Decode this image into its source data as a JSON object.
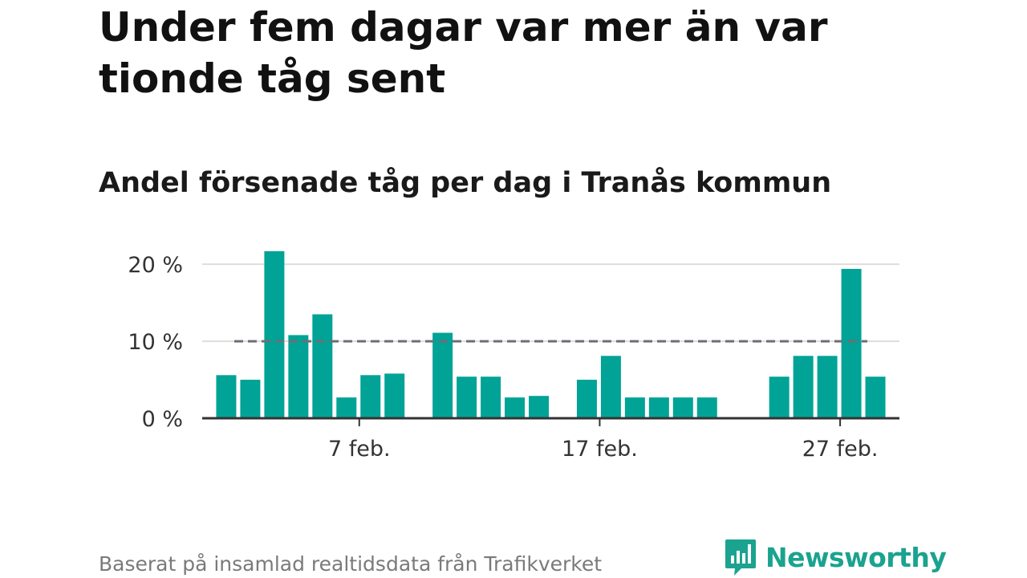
{
  "header": {
    "title": "Under fem dagar var mer än var tionde tåg sent",
    "subtitle": "Andel försenade tåg per dag i Tranås kommun"
  },
  "footer": {
    "source": "Baserat på insamlad realtidsdata från Trafikverket",
    "logo_text": "Newsworthy"
  },
  "colors": {
    "bar": "#00a396",
    "reference_line": "#6e6e7a",
    "grid": "#dddddd",
    "axis": "#333333",
    "logo": "#1aa38f"
  },
  "chart_data": {
    "type": "bar",
    "title": "Andel försenade tåg per dag i Tranås kommun",
    "xlabel": "",
    "ylabel": "",
    "x_tick_labels": [
      {
        "day": 7,
        "label": "7 feb."
      },
      {
        "day": 17,
        "label": "17 feb."
      },
      {
        "day": 27,
        "label": "27 feb."
      }
    ],
    "y_ticks": [
      {
        "value": 0,
        "label": "0 %"
      },
      {
        "value": 10,
        "label": "10 %"
      },
      {
        "value": 20,
        "label": "20 %"
      }
    ],
    "ylim": [
      0,
      22
    ],
    "xlim_days": [
      0,
      29
    ],
    "reference_line": {
      "value": 10,
      "style": "dashed"
    },
    "grid": true,
    "categories": [
      "1 feb.",
      "2 feb.",
      "3 feb.",
      "4 feb.",
      "5 feb.",
      "6 feb.",
      "7 feb.",
      "8 feb.",
      "9 feb.",
      "10 feb.",
      "11 feb.",
      "12 feb.",
      "13 feb.",
      "14 feb.",
      "15 feb.",
      "16 feb.",
      "17 feb.",
      "18 feb.",
      "19 feb.",
      "20 feb.",
      "21 feb.",
      "22 feb.",
      "23 feb.",
      "24 feb.",
      "25 feb.",
      "26 feb.",
      "27 feb.",
      "28 feb."
    ],
    "days": [
      1,
      2,
      3,
      4,
      5,
      6,
      7,
      8,
      9,
      10,
      11,
      12,
      13,
      14,
      15,
      16,
      17,
      18,
      19,
      20,
      21,
      22,
      23,
      24,
      25,
      26,
      27,
      28
    ],
    "values": [
      5.6,
      5.0,
      21.7,
      10.8,
      13.5,
      2.7,
      5.6,
      5.8,
      0,
      11.1,
      5.4,
      5.4,
      2.7,
      2.9,
      0,
      5.0,
      8.1,
      2.7,
      2.7,
      2.7,
      2.7,
      0,
      0,
      5.4,
      8.1,
      8.1,
      19.4,
      5.4
    ]
  }
}
